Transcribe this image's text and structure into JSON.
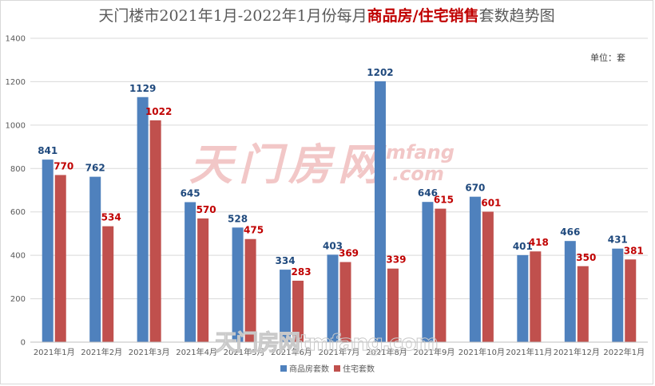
{
  "title": {
    "prefix": "天门楼市2021年1月-2022年1月份每月",
    "highlight": "商品房/住宅销售",
    "suffix": "套数趋势图"
  },
  "unit_label": "单位：套",
  "watermark": {
    "main": "天门房网",
    "sub": "mfang",
    "dotcom": ".com",
    "bottom": "天门房网tmfang.com"
  },
  "colors": {
    "series1": "#4f81bd",
    "series2": "#c0504d",
    "label1": "#1f497d",
    "label2": "#c00000",
    "grid": "#d9d9d9",
    "watermark": "#f2c7c7"
  },
  "chart_data": {
    "type": "bar",
    "categories": [
      "2021年1月",
      "2021年2月",
      "2021年3月",
      "2021年4月",
      "2021年5月",
      "2021年6月",
      "2021年7月",
      "2021年8月",
      "2021年9月",
      "2021年10月",
      "2021年11月",
      "2021年12月",
      "2022年1月"
    ],
    "series": [
      {
        "name": "商品房套数",
        "values": [
          841,
          762,
          1129,
          645,
          528,
          334,
          403,
          1202,
          646,
          670,
          401,
          466,
          431
        ]
      },
      {
        "name": "住宅套数",
        "values": [
          770,
          534,
          1022,
          570,
          475,
          283,
          369,
          339,
          615,
          601,
          418,
          350,
          381
        ]
      }
    ],
    "ylim": [
      0,
      1400
    ],
    "yticks": [
      0,
      200,
      400,
      600,
      800,
      1000,
      1200,
      1400
    ],
    "grid": true,
    "legend": "bottom"
  }
}
